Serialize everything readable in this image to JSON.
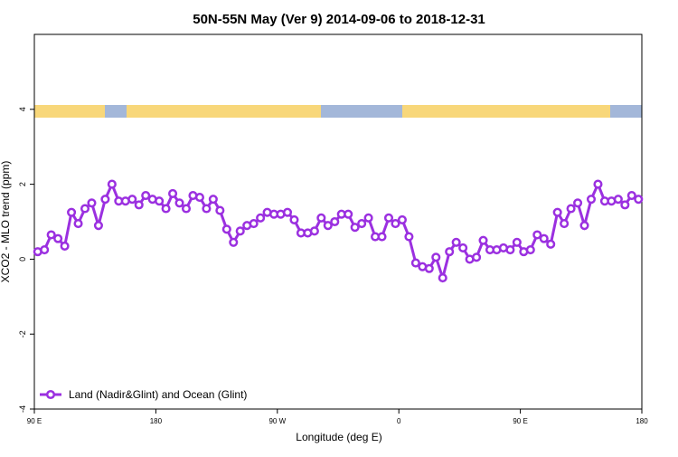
{
  "chart_data": {
    "type": "line",
    "title": "50N-55N May (Ver 9)   2014-09-06 to 2018-12-31",
    "xlabel": "Longitude (deg E)",
    "ylabel": "XCO2 - MLO trend (ppm)",
    "xlim": [
      90,
      540
    ],
    "ylim": [
      -4,
      6
    ],
    "xticks": [
      {
        "value": 90,
        "label": "90 E"
      },
      180,
      {
        "value": 270,
        "label": "90 W"
      },
      {
        "value": 360,
        "label": "0"
      },
      {
        "value": 450,
        "label": "90 E"
      },
      {
        "value": 540,
        "label": "180"
      }
    ],
    "yticks": [
      -4,
      -2,
      0,
      2,
      4
    ],
    "x": [
      92.5,
      97.5,
      102.5,
      107.5,
      112.5,
      117.5,
      122.5,
      127.5,
      132.5,
      137.5,
      142.5,
      147.5,
      152.5,
      157.5,
      162.5,
      167.5,
      172.5,
      177.5,
      182.5,
      187.5,
      192.5,
      197.5,
      202.5,
      207.5,
      212.5,
      217.5,
      222.5,
      227.5,
      232.5,
      237.5,
      242.5,
      247.5,
      252.5,
      257.5,
      262.5,
      267.5,
      272.5,
      277.5,
      282.5,
      287.5,
      292.5,
      297.5,
      302.5,
      307.5,
      312.5,
      317.5,
      322.5,
      327.5,
      332.5,
      337.5,
      342.5,
      347.5,
      352.5,
      357.5,
      362.5,
      367.5,
      372.5,
      377.5,
      382.5,
      387.5,
      392.5,
      397.5,
      402.5,
      407.5,
      412.5,
      417.5,
      422.5,
      427.5,
      432.5,
      437.5,
      442.5,
      447.5,
      452.5,
      457.5,
      462.5,
      467.5,
      472.5,
      477.5,
      482.5,
      487.5,
      492.5,
      497.5,
      502.5,
      507.5,
      512.5,
      517.5,
      522.5,
      527.5,
      532.5,
      537.5
    ],
    "series": [
      {
        "name": "Land (Nadir&Glint) and Ocean (Glint)",
        "color": "#9b30e0",
        "values": [
          0.2,
          0.25,
          0.65,
          0.55,
          0.35,
          1.25,
          0.95,
          1.35,
          1.5,
          0.9,
          1.6,
          2.0,
          1.55,
          1.55,
          1.6,
          1.45,
          1.7,
          1.6,
          1.55,
          1.35,
          1.75,
          1.5,
          1.35,
          1.7,
          1.65,
          1.35,
          1.6,
          1.3,
          0.8,
          0.45,
          0.75,
          0.9,
          0.95,
          1.1,
          1.25,
          1.2,
          1.2,
          1.25,
          1.05,
          0.7,
          0.7,
          0.75,
          1.1,
          0.9,
          1.0,
          1.2,
          1.2,
          0.85,
          0.95,
          1.1,
          0.6,
          0.6,
          1.1,
          0.95,
          1.05,
          0.6,
          -0.1,
          -0.2,
          -0.25,
          0.05,
          -0.5,
          0.2,
          0.45,
          0.3,
          0.0,
          0.05,
          0.5,
          0.25,
          0.25,
          0.3,
          0.25,
          0.45,
          0.2,
          0.25,
          0.65,
          0.55,
          0.4,
          1.25,
          0.95,
          1.35,
          1.5,
          0.9,
          1.6,
          2.0,
          1.55,
          1.55,
          1.6,
          1.45,
          1.7,
          1.6
        ]
      }
    ],
    "legend": "bottom-left"
  }
}
